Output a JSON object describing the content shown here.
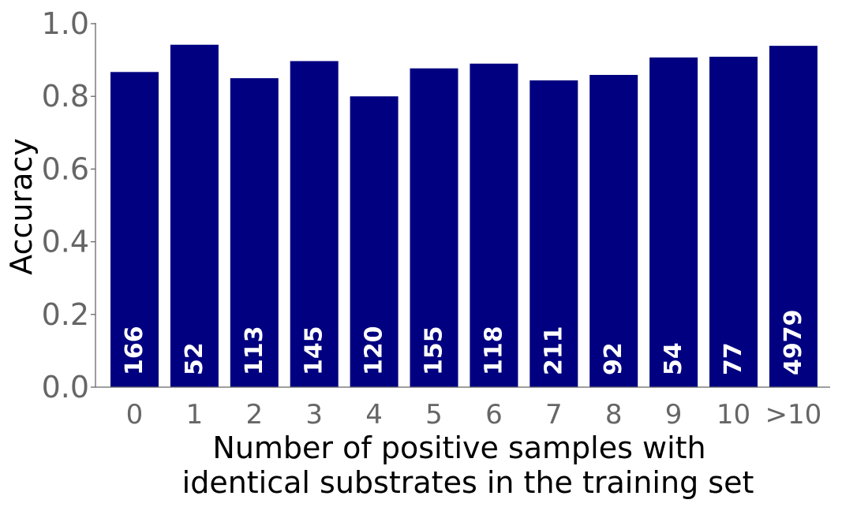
{
  "chart_data": {
    "type": "bar",
    "categories": [
      "0",
      "1",
      "2",
      "3",
      "4",
      "5",
      "6",
      "7",
      "8",
      "9",
      "10",
      ">10"
    ],
    "values": [
      0.867,
      0.942,
      0.85,
      0.897,
      0.8,
      0.877,
      0.89,
      0.844,
      0.859,
      0.907,
      0.909,
      0.939
    ],
    "bar_labels": [
      "166",
      "52",
      "113",
      "145",
      "120",
      "155",
      "118",
      "211",
      "92",
      "54",
      "77",
      "4979"
    ],
    "title": "",
    "xlabel": [
      "Number of positive samples with",
      "identical substrates in the training set"
    ],
    "ylabel": "Accuracy",
    "ylim": [
      0,
      1.0
    ],
    "yticks": [
      0.0,
      0.2,
      0.4,
      0.6,
      0.8,
      1.0
    ],
    "ytick_labels": [
      "0.0",
      "0.2",
      "0.4",
      "0.6",
      "0.8",
      "1.0"
    ],
    "grid": false,
    "legend": "none",
    "colors": {
      "bar": "#000080",
      "bar_label": "#ffffff",
      "tick_label": "#666666",
      "axis": "#666666",
      "axis_label": "#000000"
    }
  }
}
